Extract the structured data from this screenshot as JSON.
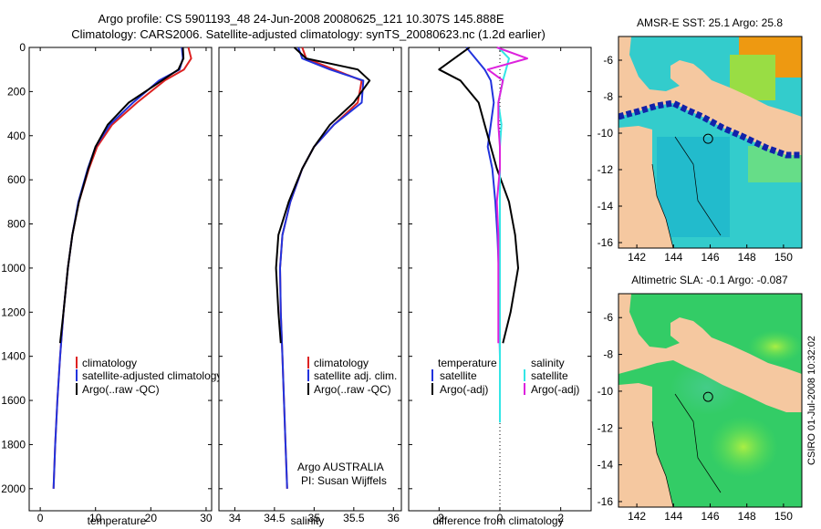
{
  "title": {
    "line1": "Argo profile: CS 5901193_48 24-Jun-2008 20080625_121 10.307S 145.888E",
    "line2": "Climatology: CARS2006. Satellite-adjusted climatology: synTS_20080623.nc (1.2d earlier)"
  },
  "side_label": "CSIRO 01-Jul-2008 10:32:02",
  "colors": {
    "clim": "#dd2222",
    "sat": "#2233dd",
    "argo": "#000000",
    "sal_sat": "#33e6e6",
    "sal_argo": "#dd22dd",
    "land": "#f5c8a0"
  },
  "chart_data": [
    {
      "type": "line",
      "id": "temperature",
      "xlabel": "temperature",
      "ylabel": "",
      "xlim": [
        -2,
        31
      ],
      "ylim": [
        0,
        2100
      ],
      "xticks": [
        0,
        10,
        20,
        30
      ],
      "yticks": [
        0,
        200,
        400,
        600,
        800,
        1000,
        1200,
        1400,
        1600,
        1800,
        2000
      ],
      "legend": [
        "climatology",
        "satellite-adjusted climatology",
        "Argo(..raw -QC)"
      ],
      "series": [
        {
          "name": "climatology",
          "color": "#dd2222",
          "x": [
            26.8,
            27.3,
            26.0,
            22.5,
            17.5,
            13.0,
            10.3,
            8.8,
            7.0,
            5.8,
            5.0,
            4.2,
            3.6,
            3.1,
            2.7,
            2.4
          ],
          "y": [
            0,
            50,
            100,
            150,
            250,
            350,
            450,
            550,
            700,
            850,
            1000,
            1200,
            1400,
            1600,
            1800,
            2000
          ]
        },
        {
          "name": "satellite-adjusted climatology",
          "color": "#2233dd",
          "x": [
            25.6,
            25.8,
            25.2,
            21.5,
            16.8,
            12.6,
            10.0,
            8.6,
            6.9,
            5.8,
            5.0,
            4.2,
            3.6,
            3.1,
            2.7,
            2.4
          ],
          "y": [
            0,
            50,
            100,
            150,
            250,
            350,
            450,
            550,
            700,
            850,
            1000,
            1200,
            1400,
            1600,
            1800,
            2000
          ]
        },
        {
          "name": "Argo(..raw -QC)",
          "color": "#000000",
          "x": [
            25.8,
            25.9,
            25.0,
            22.0,
            16.0,
            12.2,
            10.0,
            8.7,
            7.0,
            5.8,
            5.0,
            4.2,
            3.6
          ],
          "y": [
            0,
            50,
            100,
            150,
            250,
            350,
            450,
            550,
            700,
            850,
            1000,
            1200,
            1340
          ]
        }
      ]
    },
    {
      "type": "line",
      "id": "salinity",
      "xlabel": "salinity",
      "xlim": [
        33.8,
        36.1
      ],
      "ylim": [
        0,
        2100
      ],
      "xticks": [
        34,
        34.5,
        35,
        35.5,
        36
      ],
      "legend": [
        "climatology",
        "satellite adj. clim.",
        "Argo(..raw -QC)"
      ],
      "annotation": [
        "Argo AUSTRALIA",
        "PI: Susan Wijffels"
      ],
      "series": [
        {
          "name": "climatology",
          "color": "#dd2222",
          "x": [
            34.85,
            34.9,
            35.25,
            35.6,
            35.55,
            35.25,
            35.0,
            34.85,
            34.7,
            34.6,
            34.57,
            34.58,
            34.6,
            34.62,
            34.64,
            34.66
          ],
          "y": [
            0,
            50,
            100,
            150,
            250,
            350,
            450,
            550,
            700,
            850,
            1000,
            1200,
            1400,
            1600,
            1800,
            2000
          ]
        },
        {
          "name": "satellite adj. clim.",
          "color": "#2233dd",
          "x": [
            34.8,
            34.85,
            35.2,
            35.62,
            35.6,
            35.25,
            35.0,
            34.85,
            34.7,
            34.6,
            34.57,
            34.58,
            34.6,
            34.62,
            34.64,
            34.66
          ],
          "y": [
            0,
            50,
            100,
            150,
            250,
            350,
            450,
            550,
            700,
            850,
            1000,
            1200,
            1400,
            1600,
            1800,
            2000
          ]
        },
        {
          "name": "Argo(..raw -QC)",
          "color": "#000000",
          "x": [
            34.75,
            34.9,
            35.55,
            35.7,
            35.5,
            35.2,
            35.0,
            34.85,
            34.68,
            34.55,
            34.52,
            34.55,
            34.58
          ],
          "y": [
            0,
            50,
            100,
            150,
            250,
            350,
            450,
            550,
            700,
            850,
            1000,
            1200,
            1340
          ]
        }
      ]
    },
    {
      "type": "line",
      "id": "difference",
      "xlabel": "difference from climatology",
      "xlim": [
        -3,
        3
      ],
      "ylim": [
        0,
        2100
      ],
      "xticks": [
        -2,
        0,
        2
      ],
      "legend_headers": [
        "temperature",
        "salinity"
      ],
      "legend": [
        "satellite",
        "Argo(-adj)",
        "satellite",
        "Argo(-adj)"
      ],
      "series": [
        {
          "name": "temperature satellite",
          "color": "#2233dd",
          "x": [
            -1.1,
            -0.8,
            -0.5,
            -0.3,
            -0.2,
            -0.3,
            -0.4,
            -0.25,
            -0.15,
            -0.08,
            -0.04,
            -0.02,
            0,
            0
          ],
          "y": [
            0,
            50,
            100,
            150,
            250,
            350,
            450,
            550,
            700,
            850,
            1000,
            1200,
            1400,
            1600
          ]
        },
        {
          "name": "temperature Argo(-adj)",
          "color": "#000000",
          "x": [
            -1.0,
            -1.5,
            -2.0,
            -1.3,
            -0.7,
            -0.5,
            -0.3,
            -0.1,
            0.3,
            0.5,
            0.6,
            0.35,
            0.1
          ],
          "y": [
            0,
            50,
            100,
            150,
            250,
            350,
            450,
            550,
            700,
            850,
            1000,
            1200,
            1340
          ]
        },
        {
          "name": "salinity satellite",
          "color": "#33e6e6",
          "x": [
            -0.05,
            0.3,
            0.2,
            0.1,
            -0.05,
            0.05,
            0.0,
            0.0,
            0.0,
            0.0,
            0.0,
            0.0,
            0.0,
            0.0
          ],
          "y": [
            0,
            50,
            100,
            150,
            250,
            350,
            450,
            550,
            700,
            850,
            1000,
            1200,
            1400,
            1700
          ]
        },
        {
          "name": "salinity Argo(-adj)",
          "color": "#dd22dd",
          "x": [
            -0.1,
            0.9,
            -0.4,
            0.1,
            -0.05,
            -0.05,
            0.0,
            0.0,
            -0.1,
            -0.05,
            -0.05,
            -0.05,
            -0.05
          ],
          "y": [
            0,
            50,
            100,
            150,
            250,
            350,
            450,
            550,
            700,
            850,
            1000,
            1200,
            1340
          ]
        }
      ]
    },
    {
      "type": "heatmap",
      "id": "sst_map",
      "title": "AMSR-E SST: 25.1 Argo: 25.8",
      "xlim": [
        141,
        151
      ],
      "ylim": [
        -16.3,
        -4.7
      ],
      "xticks": [
        142,
        144,
        146,
        148,
        150
      ],
      "yticks": [
        -6,
        -8,
        -10,
        -12,
        -14,
        -16
      ],
      "marker": {
        "lon": 145.888,
        "lat": -10.307
      }
    },
    {
      "type": "heatmap",
      "id": "sla_map",
      "title": "Altimetric SLA: -0.1 Argo: -0.087",
      "xlim": [
        141,
        151
      ],
      "ylim": [
        -16.3,
        -4.7
      ],
      "xticks": [
        142,
        144,
        146,
        148,
        150
      ],
      "yticks": [
        -6,
        -8,
        -10,
        -12,
        -14,
        -16
      ],
      "marker": {
        "lon": 145.888,
        "lat": -10.307
      }
    }
  ]
}
